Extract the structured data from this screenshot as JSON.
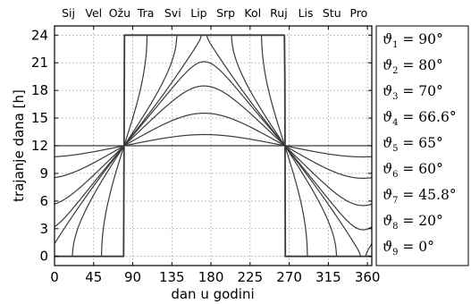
{
  "chart_data": {
    "type": "line",
    "xlabel": "dan u godini",
    "ylabel": "trajanje dana [h]",
    "xlim": [
      0,
      365
    ],
    "ylim": [
      -1,
      25
    ],
    "x_ticks": [
      0,
      45,
      90,
      135,
      180,
      225,
      270,
      315,
      360
    ],
    "y_ticks": [
      0,
      3,
      6,
      9,
      12,
      15,
      18,
      21,
      24
    ],
    "grid": true,
    "grid_style": "dotted",
    "months": {
      "labels": [
        "Sij",
        "Vel",
        "Ožu",
        "Tra",
        "Svi",
        "Lip",
        "Srp",
        "Kol",
        "Ruj",
        "Lis",
        "Stu",
        "Pro"
      ],
      "centers_day": [
        16,
        45,
        75,
        105,
        136,
        166,
        197,
        228,
        258,
        289,
        319,
        350
      ]
    },
    "equinox_days": [
      80,
      265
    ],
    "solstice_day": 172,
    "legend_position": "right-outside",
    "series": [
      {
        "label_sym": "ϑ",
        "label_sub": "1",
        "label_val": "= 90°",
        "latitude": 90
      },
      {
        "label_sym": "ϑ",
        "label_sub": "2",
        "label_val": "= 80°",
        "latitude": 80
      },
      {
        "label_sym": "ϑ",
        "label_sub": "3",
        "label_val": "= 70°",
        "latitude": 70
      },
      {
        "label_sym": "ϑ",
        "label_sub": "4",
        "label_val": "= 66.6°",
        "latitude": 66.6
      },
      {
        "label_sym": "ϑ",
        "label_sub": "5",
        "label_val": "= 65°",
        "latitude": 65
      },
      {
        "label_sym": "ϑ",
        "label_sub": "6",
        "label_val": "= 60°",
        "latitude": 60
      },
      {
        "label_sym": "ϑ",
        "label_sub": "7",
        "label_val": "= 45.8°",
        "latitude": 45.8
      },
      {
        "label_sym": "ϑ",
        "label_sub": "8",
        "label_val": "= 20°",
        "latitude": 20
      },
      {
        "label_sym": "ϑ",
        "label_sub": "9",
        "label_val": "= 0°",
        "latitude": 0
      }
    ],
    "colors": {
      "line": "#3a3a3a",
      "axis": "#000000",
      "grid": "#9a9a9a",
      "background": "#ffffff"
    }
  }
}
